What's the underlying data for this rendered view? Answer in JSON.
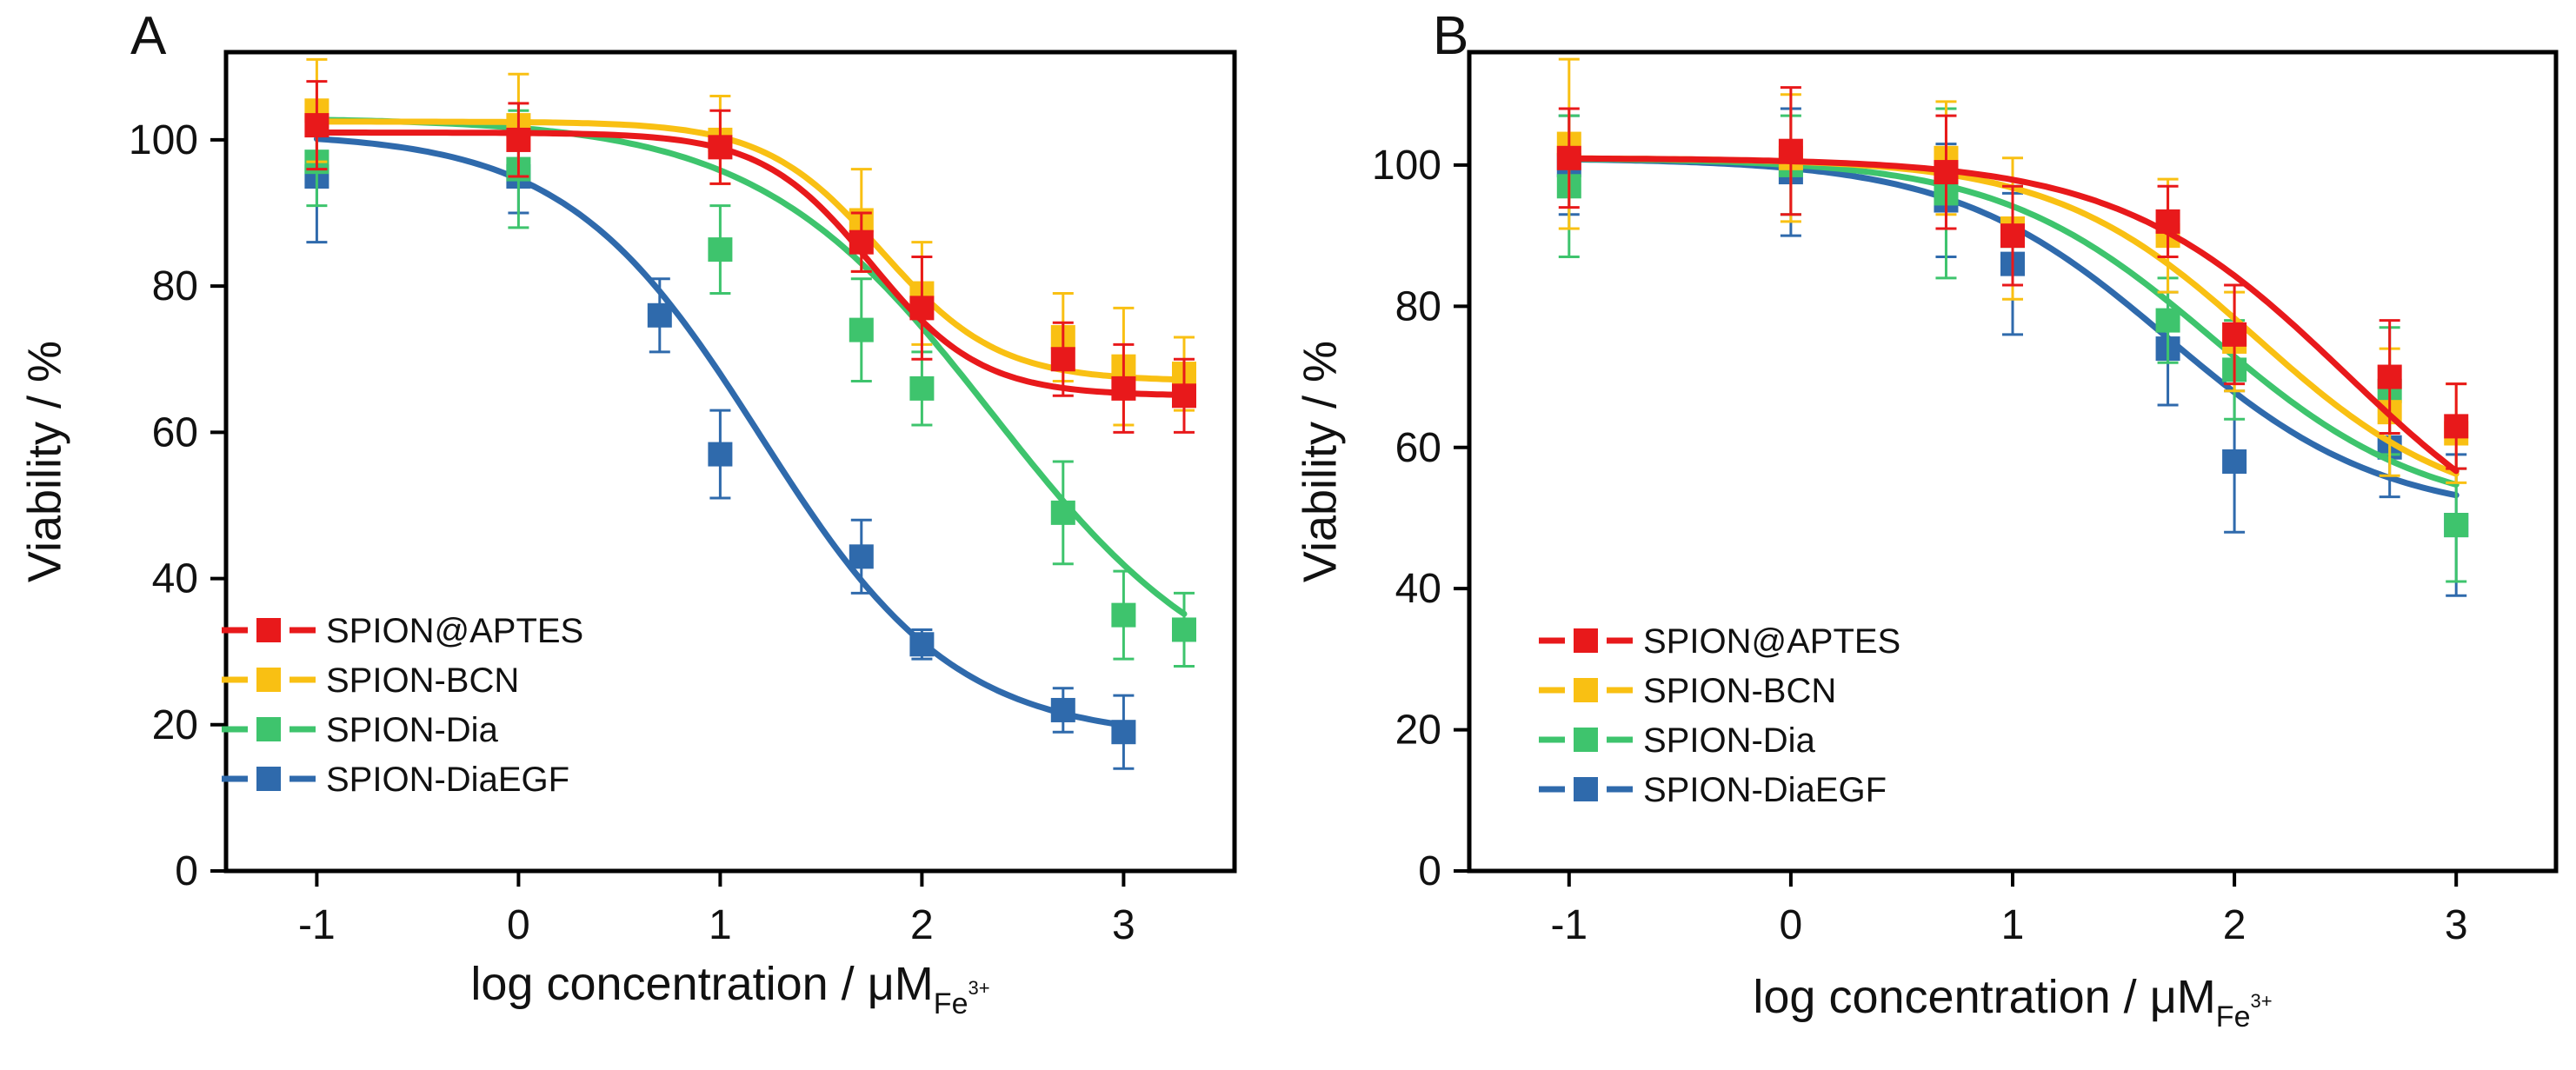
{
  "chart_data": [
    {
      "panel": "A",
      "type": "line",
      "xlabel_main": "log concentration / μM",
      "xlabel_sub": "Fe",
      "xlabel_sup": "3+",
      "ylabel": "Viability / %",
      "xlim": [
        -1.45,
        3.55
      ],
      "ylim": [
        0,
        112
      ],
      "xticks": [
        -1,
        0,
        1,
        2,
        3
      ],
      "xtick_labels": [
        "-1",
        "0",
        "1",
        "2",
        "3"
      ],
      "yticks": [
        0,
        20,
        40,
        60,
        80,
        100
      ],
      "ytick_labels": [
        "0",
        "20",
        "40",
        "60",
        "80",
        "100"
      ],
      "legend_position": "bottom-left",
      "series": [
        {
          "name": "SPION@APTES",
          "color": "#e8191b",
          "x": [
            -1,
            0,
            1,
            1.7,
            2,
            2.7,
            3,
            3.3
          ],
          "y": [
            102,
            100,
            99,
            86,
            77,
            70,
            66,
            65
          ],
          "err": [
            6,
            5,
            5,
            4,
            7,
            5,
            6,
            5
          ],
          "fit": {
            "top": 101,
            "bottom": 65,
            "logEC50": 1.75,
            "hill": 1.6
          }
        },
        {
          "name": "SPION-BCN",
          "color": "#f9c013",
          "x": [
            -1,
            0,
            1,
            1.7,
            2,
            2.7,
            3,
            3.3
          ],
          "y": [
            104,
            102,
            100,
            89,
            79,
            73,
            69,
            68
          ],
          "err": [
            7,
            7,
            6,
            7,
            7,
            6,
            8,
            5
          ],
          "fit": {
            "top": 102.5,
            "bottom": 67,
            "logEC50": 1.8,
            "hill": 1.5
          }
        },
        {
          "name": "SPION-Dia",
          "color": "#3ec46d",
          "x": [
            -1,
            0,
            1,
            1.7,
            2,
            2.7,
            3,
            3.3
          ],
          "y": [
            97,
            96,
            85,
            74,
            66,
            49,
            35,
            33
          ],
          "err": [
            6,
            8,
            6,
            7,
            5,
            7,
            6,
            5
          ],
          "fit": {
            "top": 103,
            "bottom": 22,
            "logEC50": 2.35,
            "hill": 0.75
          }
        },
        {
          "name": "SPION-DiaEGF",
          "color": "#2f6aac",
          "x": [
            -1,
            0,
            0.7,
            1,
            1.7,
            2,
            2.7,
            3
          ],
          "y": [
            95,
            95,
            76,
            57,
            43,
            31,
            22,
            19
          ],
          "err": [
            9,
            5,
            5,
            6,
            5,
            2,
            3,
            5
          ],
          "fit": {
            "top": 101,
            "bottom": 18,
            "logEC50": 1.2,
            "hill": 0.9
          }
        }
      ]
    },
    {
      "panel": "B",
      "type": "line",
      "xlabel_main": "log concentration / μM",
      "xlabel_sub": "Fe",
      "xlabel_sup": "3+",
      "ylabel": "Viability / %",
      "xlim": [
        -1.45,
        3.45
      ],
      "ylim": [
        0,
        116
      ],
      "xticks": [
        -1,
        0,
        1,
        2,
        3
      ],
      "xtick_labels": [
        "-1",
        "0",
        "1",
        "2",
        "3"
      ],
      "yticks": [
        0,
        20,
        40,
        60,
        80,
        100
      ],
      "ytick_labels": [
        "0",
        "20",
        "40",
        "60",
        "80",
        "100"
      ],
      "legend_position": "bottom-left",
      "series": [
        {
          "name": "SPION@APTES",
          "color": "#e8191b",
          "x": [
            -1,
            0,
            0.7,
            1,
            1.7,
            2,
            2.7,
            3
          ],
          "y": [
            101,
            102,
            99,
            90,
            92,
            76,
            70,
            63
          ],
          "err": [
            7,
            9,
            8,
            7,
            5,
            7,
            8,
            6
          ],
          "fit": {
            "top": 101,
            "bottom": 40,
            "logEC50": 2.5,
            "hill": 0.85
          }
        },
        {
          "name": "SPION-BCN",
          "color": "#f9c013",
          "x": [
            -1,
            0,
            0.7,
            1,
            1.7,
            2,
            2.7,
            3
          ],
          "y": [
            103,
            101,
            101,
            91,
            90,
            75,
            65,
            62
          ],
          "err": [
            12,
            9,
            8,
            10,
            8,
            7,
            9,
            7
          ],
          "fit": {
            "top": 101,
            "bottom": 50,
            "logEC50": 2.1,
            "hill": 0.95
          }
        },
        {
          "name": "SPION-Dia",
          "color": "#3ec46d",
          "x": [
            -1,
            0,
            0.7,
            1,
            1.7,
            2,
            2.7,
            3
          ],
          "y": [
            97,
            100,
            96,
            90,
            78,
            71,
            68,
            49
          ],
          "err": [
            10,
            7,
            12,
            7,
            6,
            7,
            9,
            8
          ],
          "fit": {
            "top": 101,
            "bottom": 50,
            "logEC50": 1.9,
            "hill": 0.9
          }
        },
        {
          "name": "SPION-DiaEGF",
          "color": "#2f6aac",
          "x": [
            -1,
            0,
            0.7,
            1,
            1.7,
            2,
            2.7,
            3
          ],
          "y": [
            100,
            99,
            95,
            86,
            74,
            58,
            60,
            49
          ],
          "err": [
            7,
            9,
            8,
            10,
            8,
            10,
            7,
            10
          ],
          "fit": {
            "top": 101,
            "bottom": 50,
            "logEC50": 1.7,
            "hill": 0.9
          }
        }
      ]
    }
  ]
}
